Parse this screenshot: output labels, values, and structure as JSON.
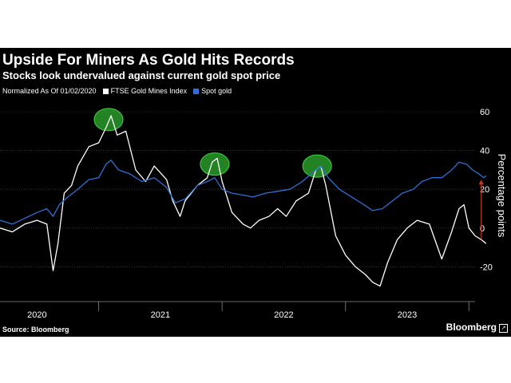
{
  "title": "Upside For Miners As Gold Hits Records",
  "subtitle": "Stocks look undervalued against current gold spot price",
  "legend": {
    "note": "Normalized As Of 01/02/2020",
    "series": [
      "FTSE Gold Mines Index",
      "Spot gold"
    ]
  },
  "source": "Source: Bloomberg",
  "brand": "Bloomberg",
  "colors": {
    "background": "#000000",
    "mines": "#ffffff",
    "gold": "#2f6fd6",
    "highlight": "#2fae2f",
    "arrow": "#c0392b"
  },
  "chart_data": {
    "type": "line",
    "ylabel": "Percentage points",
    "ylim": [
      -38,
      65
    ],
    "xlim": [
      2019.7,
      2023.55
    ],
    "y_ticks": [
      60,
      40,
      20,
      0,
      -20
    ],
    "x_ticks": [
      {
        "label": "2020",
        "value": 2020.0
      },
      {
        "label": "2021",
        "value": 2021.0
      },
      {
        "label": "2022",
        "value": 2022.0
      },
      {
        "label": "2023",
        "value": 2023.0
      }
    ],
    "grid": "horizontal",
    "legend_position": "top-left",
    "series": [
      {
        "name": "FTSE Gold Mines Index",
        "color": "#ffffff",
        "points": [
          [
            2019.7,
            0
          ],
          [
            2019.8,
            -2
          ],
          [
            2019.9,
            2
          ],
          [
            2020.0,
            4
          ],
          [
            2020.08,
            2
          ],
          [
            2020.13,
            -22
          ],
          [
            2020.17,
            -8
          ],
          [
            2020.22,
            18
          ],
          [
            2020.28,
            22
          ],
          [
            2020.33,
            32
          ],
          [
            2020.42,
            42
          ],
          [
            2020.5,
            44
          ],
          [
            2020.56,
            52
          ],
          [
            2020.6,
            58
          ],
          [
            2020.65,
            48
          ],
          [
            2020.72,
            50
          ],
          [
            2020.8,
            30
          ],
          [
            2020.88,
            24
          ],
          [
            2020.95,
            32
          ],
          [
            2021.05,
            25
          ],
          [
            2021.1,
            14
          ],
          [
            2021.16,
            6
          ],
          [
            2021.2,
            14
          ],
          [
            2021.3,
            22
          ],
          [
            2021.38,
            26
          ],
          [
            2021.42,
            34
          ],
          [
            2021.46,
            36
          ],
          [
            2021.5,
            24
          ],
          [
            2021.58,
            8
          ],
          [
            2021.67,
            2
          ],
          [
            2021.73,
            0
          ],
          [
            2021.8,
            4
          ],
          [
            2021.88,
            6
          ],
          [
            2021.95,
            10
          ],
          [
            2022.02,
            6
          ],
          [
            2022.1,
            14
          ],
          [
            2022.2,
            18
          ],
          [
            2022.26,
            30
          ],
          [
            2022.3,
            32
          ],
          [
            2022.34,
            22
          ],
          [
            2022.42,
            -4
          ],
          [
            2022.5,
            -14
          ],
          [
            2022.58,
            -20
          ],
          [
            2022.66,
            -24
          ],
          [
            2022.72,
            -28
          ],
          [
            2022.78,
            -30
          ],
          [
            2022.84,
            -18
          ],
          [
            2022.92,
            -6
          ],
          [
            2023.0,
            0
          ],
          [
            2023.08,
            4
          ],
          [
            2023.18,
            2
          ],
          [
            2023.28,
            -16
          ],
          [
            2023.36,
            -2
          ],
          [
            2023.42,
            10
          ],
          [
            2023.46,
            12
          ],
          [
            2023.5,
            0
          ],
          [
            2023.55,
            -4
          ],
          [
            2023.6,
            -6
          ],
          [
            2023.64,
            -8
          ]
        ]
      },
      {
        "name": "Spot gold",
        "color": "#2f6fd6",
        "points": [
          [
            2019.7,
            4
          ],
          [
            2019.8,
            2
          ],
          [
            2019.9,
            5
          ],
          [
            2020.0,
            8
          ],
          [
            2020.08,
            10
          ],
          [
            2020.13,
            6
          ],
          [
            2020.18,
            12
          ],
          [
            2020.25,
            16
          ],
          [
            2020.33,
            20
          ],
          [
            2020.42,
            25
          ],
          [
            2020.5,
            26
          ],
          [
            2020.56,
            33
          ],
          [
            2020.6,
            35
          ],
          [
            2020.66,
            30
          ],
          [
            2020.75,
            28
          ],
          [
            2020.85,
            24
          ],
          [
            2020.95,
            26
          ],
          [
            2021.05,
            21
          ],
          [
            2021.12,
            13
          ],
          [
            2021.2,
            15
          ],
          [
            2021.3,
            22
          ],
          [
            2021.38,
            24
          ],
          [
            2021.44,
            26
          ],
          [
            2021.5,
            20
          ],
          [
            2021.58,
            18
          ],
          [
            2021.67,
            17
          ],
          [
            2021.75,
            16
          ],
          [
            2021.85,
            18
          ],
          [
            2021.95,
            19
          ],
          [
            2022.05,
            20
          ],
          [
            2022.15,
            24
          ],
          [
            2022.26,
            30
          ],
          [
            2022.3,
            32
          ],
          [
            2022.36,
            26
          ],
          [
            2022.45,
            20
          ],
          [
            2022.55,
            16
          ],
          [
            2022.65,
            12
          ],
          [
            2022.72,
            9
          ],
          [
            2022.8,
            10
          ],
          [
            2022.88,
            14
          ],
          [
            2022.96,
            18
          ],
          [
            2023.05,
            20
          ],
          [
            2023.12,
            24
          ],
          [
            2023.2,
            26
          ],
          [
            2023.28,
            26
          ],
          [
            2023.36,
            30
          ],
          [
            2023.42,
            34
          ],
          [
            2023.48,
            33
          ],
          [
            2023.53,
            30
          ],
          [
            2023.58,
            28
          ],
          [
            2023.62,
            26
          ],
          [
            2023.64,
            27
          ]
        ]
      }
    ],
    "annotations": [
      {
        "type": "highlight",
        "x": 2020.58,
        "y": 56
      },
      {
        "type": "highlight",
        "x": 2021.44,
        "y": 33
      },
      {
        "type": "highlight",
        "x": 2022.27,
        "y": 32
      },
      {
        "type": "arrow",
        "x": 2023.6,
        "from_y": -6,
        "to_y": 25
      }
    ]
  }
}
